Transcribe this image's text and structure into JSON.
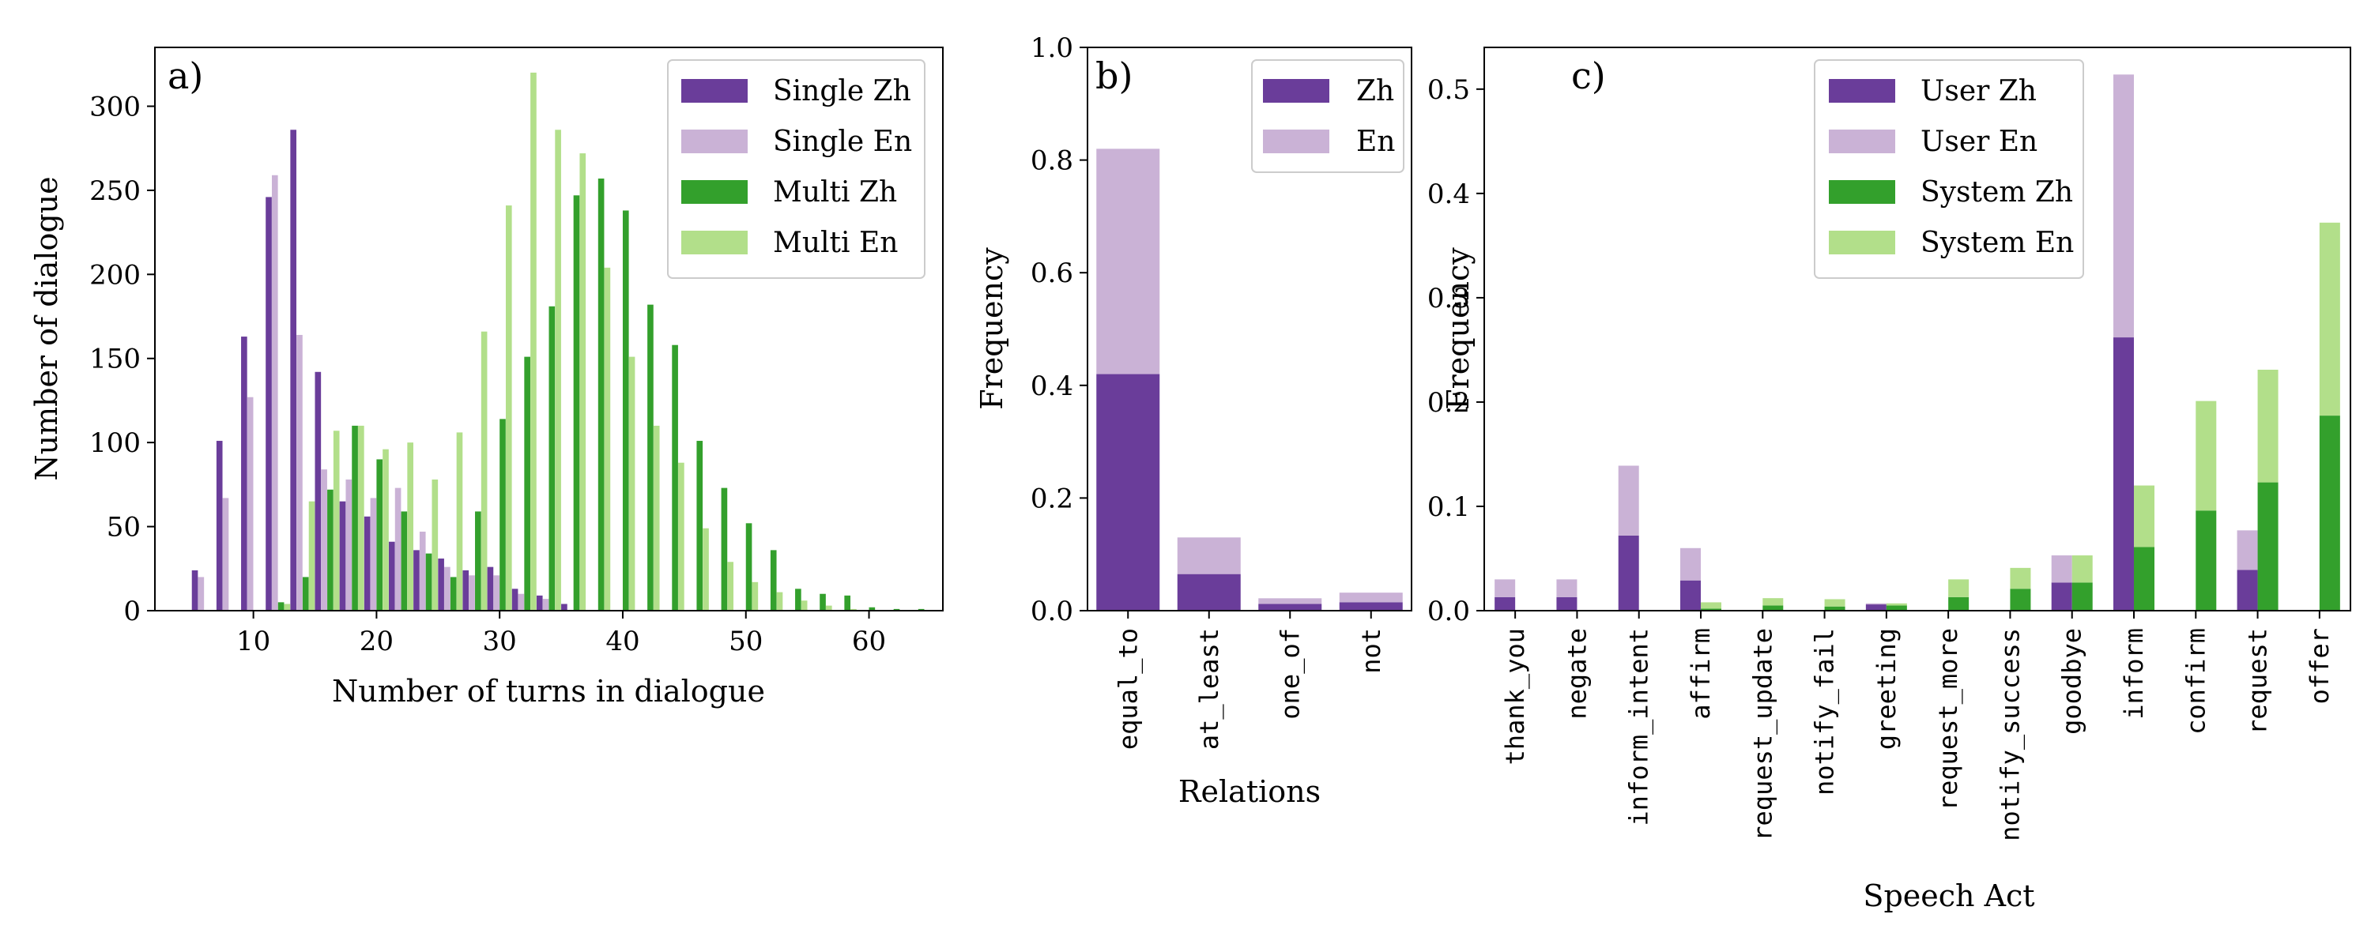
{
  "figure": {
    "colors": {
      "single_zh": "#6a3d9a",
      "single_en": "#cab2d6",
      "multi_zh": "#33a02c",
      "multi_en": "#b2df8a"
    }
  },
  "chart_data": [
    {
      "id": "a",
      "type": "bar",
      "panel_label": "a)",
      "xlabel": "Number of turns in dialogue",
      "ylabel": "Number of dialogue",
      "xlim": [
        2,
        66
      ],
      "ylim": [
        0,
        335
      ],
      "xticks": [
        10,
        20,
        30,
        40,
        50,
        60
      ],
      "yticks": [
        0,
        50,
        100,
        150,
        200,
        250,
        300
      ],
      "bin_width": 2,
      "legend": [
        "Single Zh",
        "Single En",
        "Multi Zh",
        "Multi En"
      ],
      "legend_position": "top-right",
      "series": [
        {
          "name": "Single Zh",
          "color": "#6a3d9a",
          "x": [
            6,
            8,
            10,
            12,
            14,
            16,
            18,
            20,
            22,
            24,
            26,
            28,
            30,
            32,
            34,
            36
          ],
          "values": [
            24,
            101,
            163,
            246,
            286,
            142,
            65,
            56,
            41,
            36,
            31,
            24,
            26,
            13,
            9,
            4
          ]
        },
        {
          "name": "Single En",
          "color": "#cab2d6",
          "x": [
            6,
            8,
            10,
            12,
            14,
            16,
            18,
            20,
            22,
            24,
            26,
            28,
            30,
            32,
            34
          ],
          "values": [
            20,
            67,
            127,
            259,
            164,
            84,
            78,
            67,
            73,
            47,
            26,
            21,
            21,
            10,
            7
          ]
        },
        {
          "name": "Multi Zh",
          "color": "#33a02c",
          "x": [
            12,
            14,
            16,
            18,
            20,
            22,
            24,
            26,
            28,
            30,
            32,
            34,
            36,
            38,
            40,
            42,
            44,
            46,
            48,
            50,
            52,
            54,
            56,
            58,
            60,
            62,
            64
          ],
          "values": [
            5,
            20,
            72,
            110,
            90,
            59,
            34,
            20,
            59,
            114,
            151,
            181,
            247,
            257,
            238,
            182,
            158,
            101,
            73,
            52,
            36,
            13,
            10,
            9,
            2,
            1,
            1
          ]
        },
        {
          "name": "Multi En",
          "color": "#b2df8a",
          "x": [
            12,
            14,
            16,
            18,
            20,
            22,
            24,
            26,
            28,
            30,
            32,
            34,
            36,
            38,
            40,
            42,
            44,
            46,
            48,
            50,
            52,
            54,
            56,
            58
          ],
          "values": [
            4,
            65,
            107,
            110,
            96,
            100,
            78,
            106,
            166,
            241,
            320,
            286,
            272,
            204,
            151,
            110,
            88,
            49,
            29,
            17,
            11,
            6,
            3,
            1
          ]
        }
      ]
    },
    {
      "id": "b",
      "type": "bar",
      "stacked": true,
      "panel_label": "b)",
      "xlabel": "Relations",
      "ylabel": "Frequency",
      "ylim": [
        0,
        1.0
      ],
      "yticks": [
        0.0,
        0.2,
        0.4,
        0.6,
        0.8,
        1.0
      ],
      "categories": [
        "equal_to",
        "at_least",
        "one_of",
        "not"
      ],
      "legend": [
        "Zh",
        "En"
      ],
      "legend_position": "top-right",
      "series": [
        {
          "name": "Zh",
          "color": "#6a3d9a",
          "values": [
            0.42,
            0.065,
            0.012,
            0.015
          ]
        },
        {
          "name": "En",
          "color": "#cab2d6",
          "values": [
            0.4,
            0.065,
            0.01,
            0.017
          ]
        }
      ]
    },
    {
      "id": "c",
      "type": "bar",
      "stacked": true,
      "panel_label": "c)",
      "xlabel": "Speech Act",
      "ylabel": "Frequency",
      "ylim": [
        0,
        0.54
      ],
      "yticks": [
        0.0,
        0.1,
        0.2,
        0.3,
        0.4,
        0.5
      ],
      "categories": [
        "thank_you",
        "negate",
        "inform_intent",
        "affirm",
        "request_update",
        "notify_fail",
        "greeting",
        "request_more",
        "notify_success",
        "goodbye",
        "inform",
        "confirm",
        "request",
        "offer"
      ],
      "legend": [
        "User Zh",
        "User En",
        "System Zh",
        "System En"
      ],
      "legend_position": "top-center",
      "series": [
        {
          "name": "User Zh",
          "color": "#6a3d9a",
          "group": "user",
          "values": [
            0.013,
            0.013,
            0.072,
            0.029,
            0,
            0,
            0.006,
            0,
            0,
            0.027,
            0.262,
            0,
            0.039,
            0
          ]
        },
        {
          "name": "User En",
          "color": "#cab2d6",
          "group": "user",
          "values": [
            0.017,
            0.017,
            0.067,
            0.031,
            0,
            0,
            0.001,
            0,
            0,
            0.026,
            0.252,
            0,
            0.038,
            0
          ]
        },
        {
          "name": "System Zh",
          "color": "#33a02c",
          "group": "system",
          "values": [
            0,
            0,
            0,
            0.002,
            0.005,
            0.004,
            0.005,
            0.013,
            0.021,
            0.027,
            0.061,
            0.096,
            0.123,
            0.187
          ]
        },
        {
          "name": "System En",
          "color": "#b2df8a",
          "group": "system",
          "values": [
            0,
            0,
            0,
            0.006,
            0.007,
            0.007,
            0.002,
            0.017,
            0.02,
            0.026,
            0.059,
            0.105,
            0.108,
            0.185
          ]
        }
      ]
    }
  ]
}
